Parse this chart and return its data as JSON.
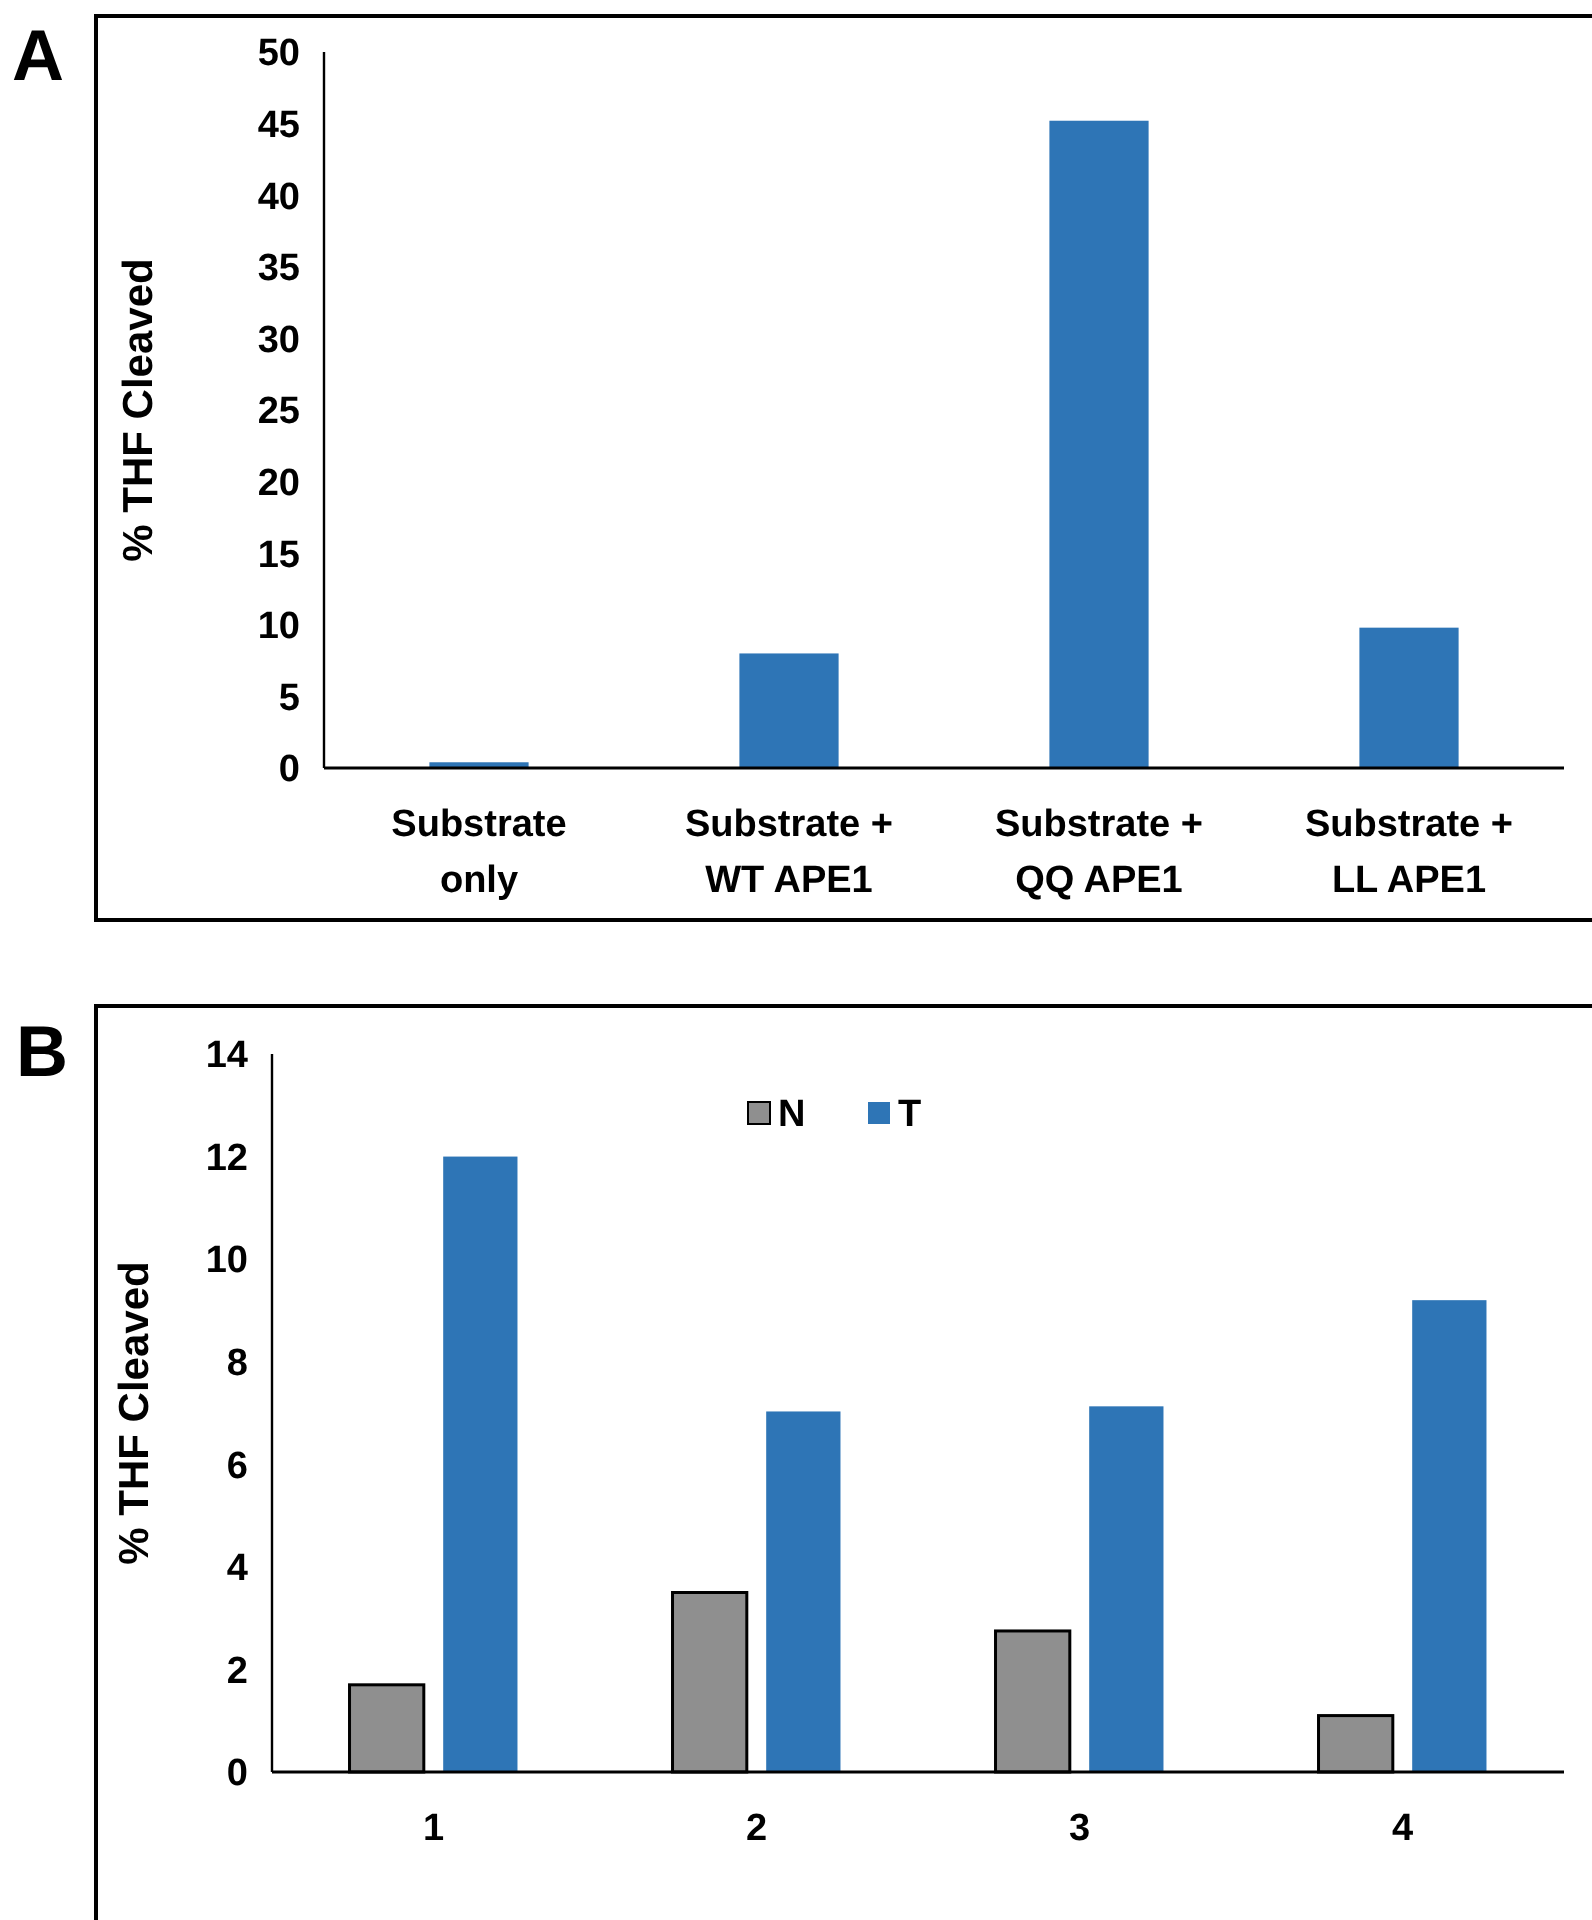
{
  "chart_data": [
    {
      "type": "bar",
      "ylabel": "% THF Cleaved",
      "annotations": [
        "A"
      ],
      "categories": [
        "Substrate only",
        "Substrate + WT APE1",
        "Substrate + QQ APE1",
        "Substrate + LL APE1"
      ],
      "series": [
        {
          "color": "#2e75b6",
          "values": [
            0.4,
            8.0,
            45.2,
            9.8
          ]
        }
      ],
      "ylim": [
        0,
        50
      ],
      "yticks": [
        0,
        5,
        10,
        15,
        20,
        25,
        30,
        35,
        40,
        45,
        50
      ],
      "grid": false,
      "legend": false
    },
    {
      "type": "bar",
      "ylabel": "% THF Cleaved",
      "annotations": [
        "B"
      ],
      "categories": [
        "1",
        "2",
        "3",
        "4"
      ],
      "series": [
        {
          "name": "N",
          "color": "#8f8f8f",
          "values": [
            1.7,
            3.5,
            2.75,
            1.1
          ]
        },
        {
          "name": "T",
          "color": "#2e75b6",
          "values": [
            12.0,
            7.03,
            7.13,
            9.2
          ]
        }
      ],
      "ylim": [
        0,
        14
      ],
      "yticks": [
        0,
        2,
        4,
        6,
        8,
        10,
        12,
        14
      ],
      "grid": false,
      "legend": "top"
    }
  ]
}
